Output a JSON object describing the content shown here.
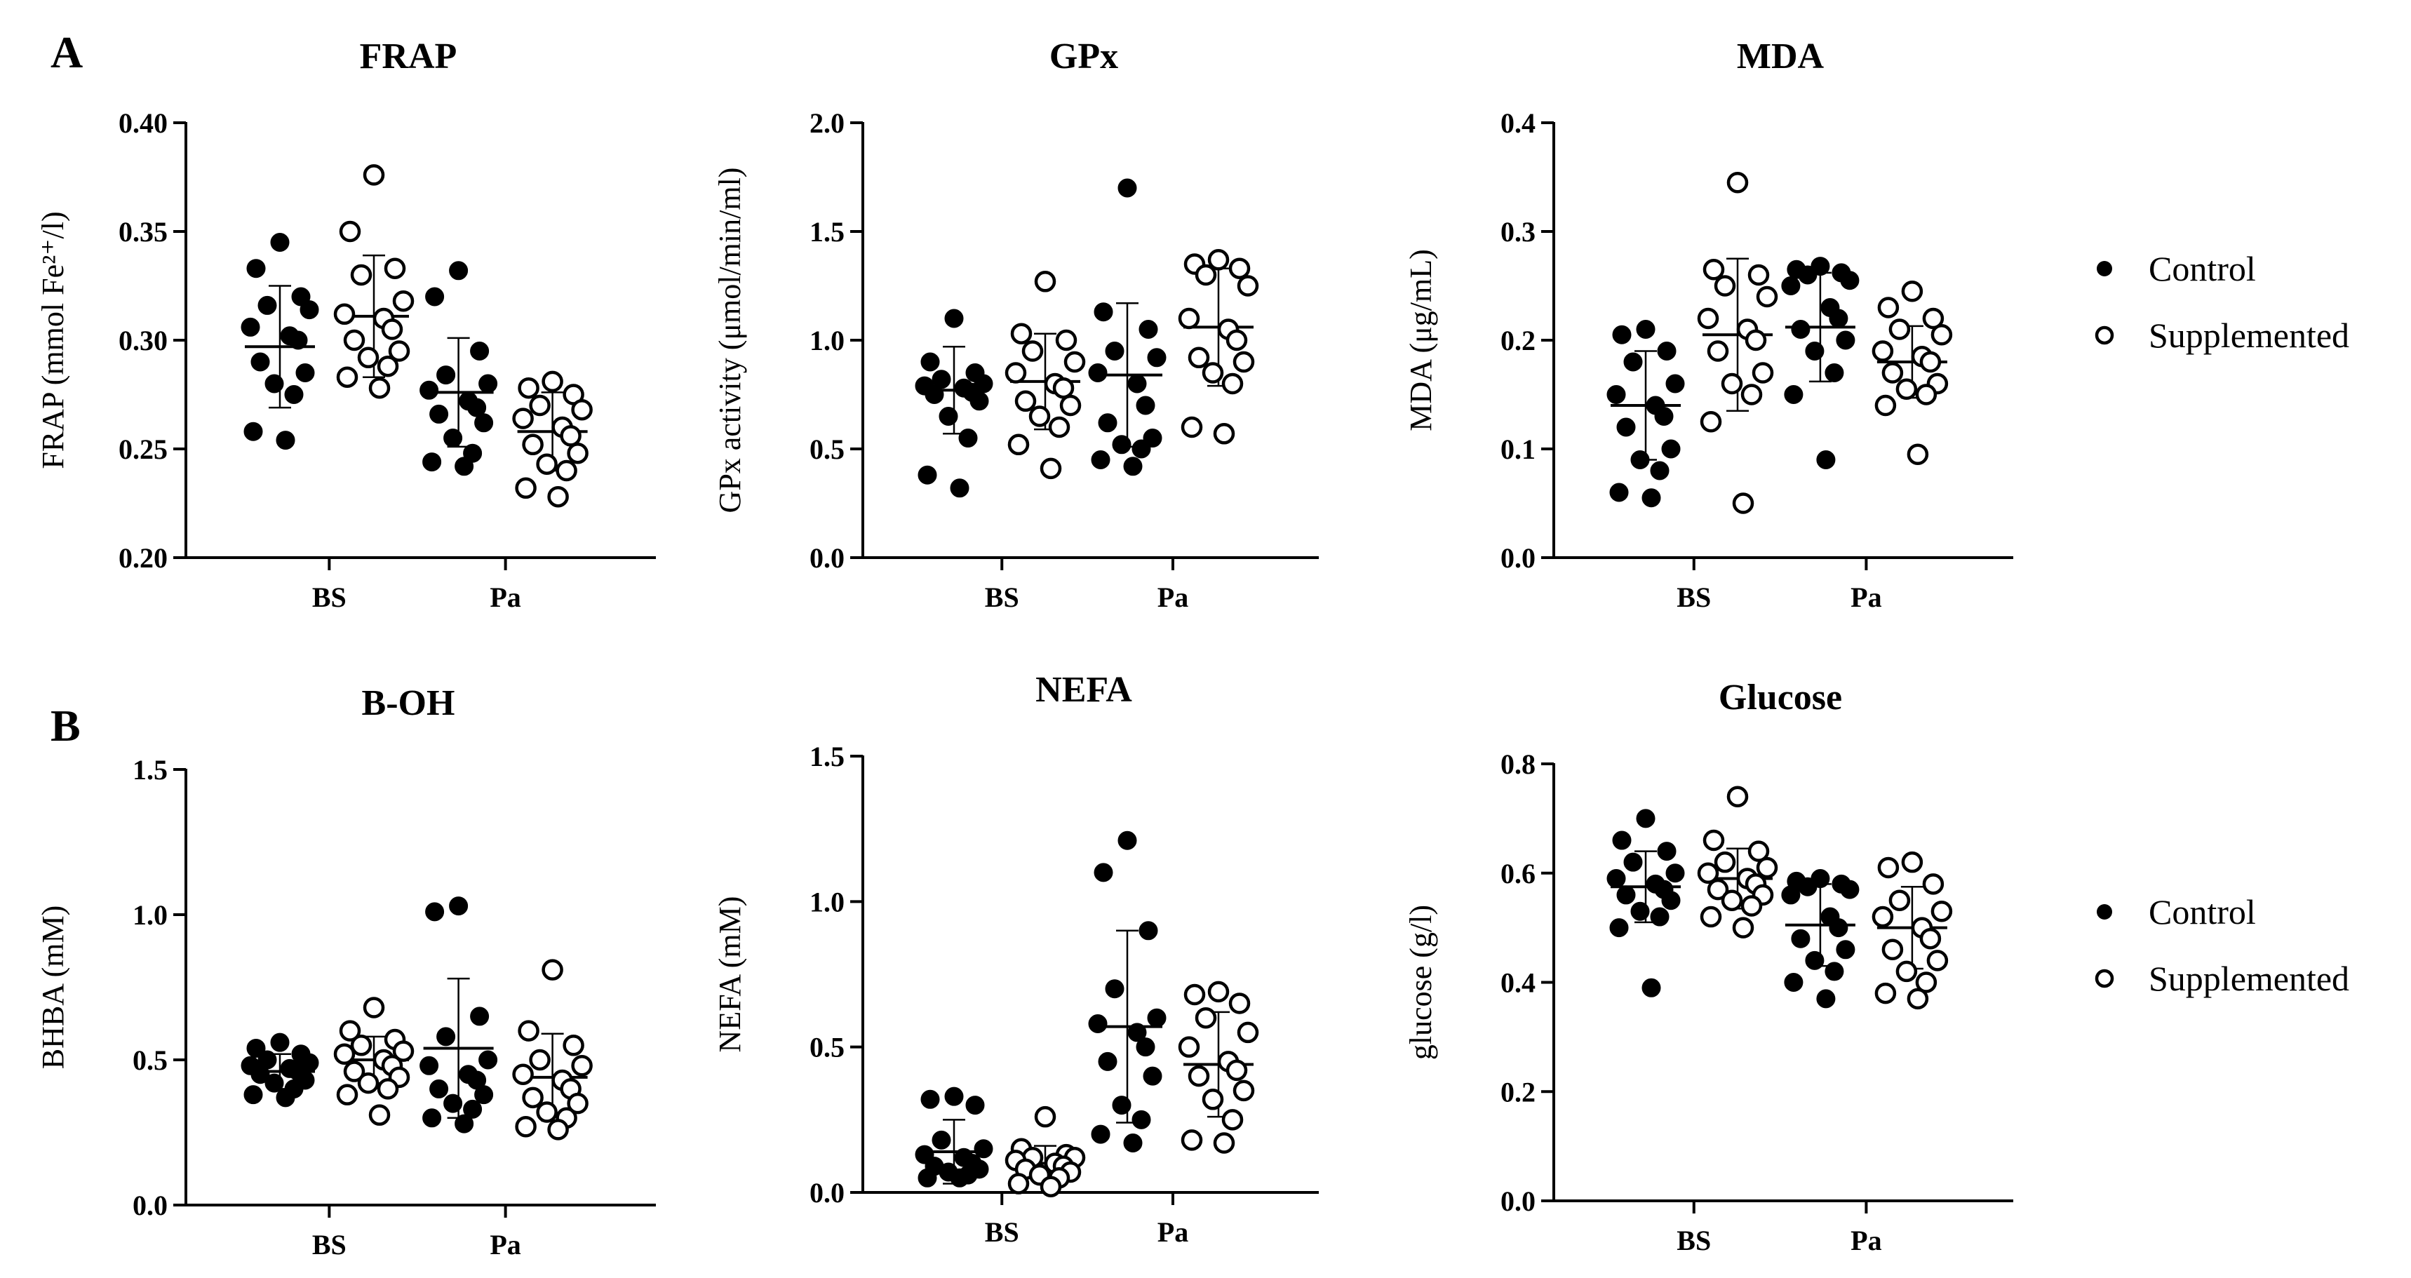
{
  "figure": {
    "panel_labels": [
      "A",
      "B"
    ],
    "legend": [
      {
        "label": "Control",
        "style": "filled"
      },
      {
        "label": "Supplemented",
        "style": "open"
      }
    ]
  },
  "chart_data": [
    {
      "type": "scatter",
      "title": "FRAP",
      "ylabel": "FRAP (mmol Fe²⁺/l)",
      "ylim": [
        0.2,
        0.4
      ],
      "yticks": [
        0.2,
        0.25,
        0.3,
        0.35,
        0.4
      ],
      "tick_decimals": 2,
      "categories": [
        "BS",
        "Pa"
      ],
      "series": [
        {
          "name": "Control",
          "groups": [
            {
              "category": "BS",
              "mean": 0.297,
              "sd": 0.028,
              "values": [
                0.345,
                0.333,
                0.32,
                0.316,
                0.314,
                0.306,
                0.302,
                0.3,
                0.29,
                0.285,
                0.28,
                0.275,
                0.258,
                0.254
              ]
            },
            {
              "category": "Pa",
              "mean": 0.276,
              "sd": 0.025,
              "values": [
                0.332,
                0.32,
                0.295,
                0.284,
                0.28,
                0.277,
                0.272,
                0.269,
                0.266,
                0.262,
                0.255,
                0.248,
                0.244,
                0.242
              ]
            }
          ]
        },
        {
          "name": "Supplemented",
          "groups": [
            {
              "category": "BS",
              "mean": 0.311,
              "sd": 0.028,
              "values": [
                0.376,
                0.35,
                0.333,
                0.33,
                0.318,
                0.312,
                0.31,
                0.305,
                0.3,
                0.295,
                0.292,
                0.288,
                0.283,
                0.278
              ]
            },
            {
              "category": "Pa",
              "mean": 0.258,
              "sd": 0.018,
              "values": [
                0.281,
                0.278,
                0.275,
                0.27,
                0.268,
                0.264,
                0.26,
                0.256,
                0.252,
                0.248,
                0.243,
                0.24,
                0.232,
                0.228
              ]
            }
          ]
        }
      ]
    },
    {
      "type": "scatter",
      "title": "GPx",
      "ylabel": "GPx activity (μmol/min/ml)",
      "ylim": [
        0.0,
        2.0
      ],
      "yticks": [
        0.0,
        0.5,
        1.0,
        1.5,
        2.0
      ],
      "tick_decimals": 1,
      "categories": [
        "BS",
        "Pa"
      ],
      "series": [
        {
          "name": "Control",
          "groups": [
            {
              "category": "BS",
              "mean": 0.77,
              "sd": 0.2,
              "values": [
                1.1,
                0.9,
                0.85,
                0.82,
                0.8,
                0.79,
                0.78,
                0.76,
                0.75,
                0.72,
                0.65,
                0.55,
                0.38,
                0.32
              ]
            },
            {
              "category": "Pa",
              "mean": 0.84,
              "sd": 0.33,
              "values": [
                1.7,
                1.13,
                1.05,
                0.95,
                0.92,
                0.85,
                0.8,
                0.7,
                0.62,
                0.55,
                0.52,
                0.5,
                0.45,
                0.42
              ]
            }
          ]
        },
        {
          "name": "Supplemented",
          "groups": [
            {
              "category": "BS",
              "mean": 0.81,
              "sd": 0.22,
              "values": [
                1.27,
                1.03,
                1.0,
                0.95,
                0.9,
                0.85,
                0.8,
                0.78,
                0.72,
                0.7,
                0.65,
                0.6,
                0.52,
                0.41
              ]
            },
            {
              "category": "Pa",
              "mean": 1.06,
              "sd": 0.27,
              "values": [
                1.37,
                1.35,
                1.33,
                1.3,
                1.25,
                1.1,
                1.05,
                1.0,
                0.92,
                0.9,
                0.85,
                0.8,
                0.6,
                0.57
              ]
            }
          ]
        }
      ]
    },
    {
      "type": "scatter",
      "title": "MDA",
      "ylabel": "MDA (μg/mL)",
      "ylim": [
        0.0,
        0.4
      ],
      "yticks": [
        0.0,
        0.1,
        0.2,
        0.3,
        0.4
      ],
      "tick_decimals": 1,
      "categories": [
        "BS",
        "Pa"
      ],
      "series": [
        {
          "name": "Control",
          "groups": [
            {
              "category": "BS",
              "mean": 0.14,
              "sd": 0.05,
              "values": [
                0.21,
                0.205,
                0.19,
                0.18,
                0.16,
                0.15,
                0.14,
                0.13,
                0.12,
                0.1,
                0.09,
                0.08,
                0.06,
                0.055
              ]
            },
            {
              "category": "Pa",
              "mean": 0.212,
              "sd": 0.05,
              "values": [
                0.268,
                0.265,
                0.262,
                0.26,
                0.255,
                0.25,
                0.23,
                0.22,
                0.21,
                0.2,
                0.19,
                0.17,
                0.15,
                0.09
              ]
            }
          ]
        },
        {
          "name": "Supplemented",
          "groups": [
            {
              "category": "BS",
              "mean": 0.205,
              "sd": 0.07,
              "values": [
                0.345,
                0.265,
                0.26,
                0.25,
                0.24,
                0.22,
                0.21,
                0.2,
                0.19,
                0.17,
                0.16,
                0.15,
                0.125,
                0.05
              ]
            },
            {
              "category": "Pa",
              "mean": 0.18,
              "sd": 0.033,
              "values": [
                0.245,
                0.23,
                0.22,
                0.21,
                0.205,
                0.19,
                0.185,
                0.18,
                0.17,
                0.16,
                0.155,
                0.15,
                0.14,
                0.095
              ]
            }
          ]
        }
      ]
    },
    {
      "type": "scatter",
      "title": "B-OH",
      "ylabel": "BHBA (mM)",
      "ylim": [
        0.0,
        1.5
      ],
      "yticks": [
        0.0,
        0.5,
        1.0,
        1.5
      ],
      "tick_decimals": 1,
      "categories": [
        "BS",
        "Pa"
      ],
      "series": [
        {
          "name": "Control",
          "groups": [
            {
              "category": "BS",
              "mean": 0.46,
              "sd": 0.06,
              "values": [
                0.56,
                0.54,
                0.52,
                0.5,
                0.49,
                0.48,
                0.47,
                0.46,
                0.45,
                0.43,
                0.42,
                0.4,
                0.38,
                0.37
              ]
            },
            {
              "category": "Pa",
              "mean": 0.54,
              "sd": 0.24,
              "values": [
                1.03,
                1.01,
                0.65,
                0.58,
                0.5,
                0.48,
                0.45,
                0.43,
                0.4,
                0.38,
                0.35,
                0.33,
                0.3,
                0.28
              ]
            }
          ]
        },
        {
          "name": "Supplemented",
          "groups": [
            {
              "category": "BS",
              "mean": 0.5,
              "sd": 0.08,
              "values": [
                0.68,
                0.6,
                0.57,
                0.55,
                0.53,
                0.52,
                0.5,
                0.48,
                0.46,
                0.44,
                0.42,
                0.4,
                0.38,
                0.31
              ]
            },
            {
              "category": "Pa",
              "mean": 0.44,
              "sd": 0.15,
              "values": [
                0.81,
                0.6,
                0.55,
                0.5,
                0.48,
                0.45,
                0.43,
                0.4,
                0.37,
                0.35,
                0.32,
                0.3,
                0.27,
                0.26
              ]
            }
          ]
        }
      ]
    },
    {
      "type": "scatter",
      "title": "NEFA",
      "ylabel": "NEFA (mM)",
      "ylim": [
        0.0,
        1.5
      ],
      "yticks": [
        0.0,
        0.5,
        1.0,
        1.5
      ],
      "tick_decimals": 1,
      "categories": [
        "BS",
        "Pa"
      ],
      "series": [
        {
          "name": "Control",
          "groups": [
            {
              "category": "BS",
              "mean": 0.14,
              "sd": 0.11,
              "values": [
                0.33,
                0.32,
                0.3,
                0.18,
                0.15,
                0.13,
                0.12,
                0.1,
                0.09,
                0.08,
                0.07,
                0.06,
                0.05,
                0.05
              ]
            },
            {
              "category": "Pa",
              "mean": 0.57,
              "sd": 0.33,
              "values": [
                1.21,
                1.1,
                0.9,
                0.7,
                0.6,
                0.58,
                0.55,
                0.5,
                0.45,
                0.4,
                0.3,
                0.25,
                0.2,
                0.17
              ]
            }
          ]
        },
        {
          "name": "Supplemented",
          "groups": [
            {
              "category": "BS",
              "mean": 0.1,
              "sd": 0.06,
              "values": [
                0.26,
                0.15,
                0.13,
                0.12,
                0.12,
                0.11,
                0.1,
                0.09,
                0.08,
                0.07,
                0.06,
                0.05,
                0.03,
                0.02
              ]
            },
            {
              "category": "Pa",
              "mean": 0.44,
              "sd": 0.18,
              "values": [
                0.69,
                0.68,
                0.65,
                0.6,
                0.55,
                0.5,
                0.45,
                0.42,
                0.4,
                0.35,
                0.32,
                0.25,
                0.18,
                0.17
              ]
            }
          ]
        }
      ]
    },
    {
      "type": "scatter",
      "title": "Glucose",
      "ylabel": "glucose (g/l)",
      "ylim": [
        0.0,
        0.8
      ],
      "yticks": [
        0.0,
        0.2,
        0.4,
        0.6,
        0.8
      ],
      "tick_decimals": 1,
      "categories": [
        "BS",
        "Pa"
      ],
      "series": [
        {
          "name": "Control",
          "groups": [
            {
              "category": "BS",
              "mean": 0.575,
              "sd": 0.065,
              "values": [
                0.7,
                0.66,
                0.64,
                0.62,
                0.6,
                0.59,
                0.58,
                0.57,
                0.56,
                0.55,
                0.53,
                0.52,
                0.5,
                0.39
              ]
            },
            {
              "category": "Pa",
              "mean": 0.505,
              "sd": 0.075,
              "values": [
                0.59,
                0.585,
                0.58,
                0.575,
                0.57,
                0.56,
                0.52,
                0.5,
                0.48,
                0.46,
                0.44,
                0.42,
                0.4,
                0.37
              ]
            }
          ]
        },
        {
          "name": "Supplemented",
          "groups": [
            {
              "category": "BS",
              "mean": 0.59,
              "sd": 0.055,
              "values": [
                0.74,
                0.66,
                0.64,
                0.62,
                0.61,
                0.6,
                0.59,
                0.58,
                0.57,
                0.56,
                0.55,
                0.54,
                0.52,
                0.5
              ]
            },
            {
              "category": "Pa",
              "mean": 0.5,
              "sd": 0.075,
              "values": [
                0.62,
                0.61,
                0.58,
                0.55,
                0.53,
                0.52,
                0.5,
                0.48,
                0.46,
                0.44,
                0.42,
                0.4,
                0.38,
                0.37
              ]
            }
          ]
        }
      ]
    }
  ]
}
